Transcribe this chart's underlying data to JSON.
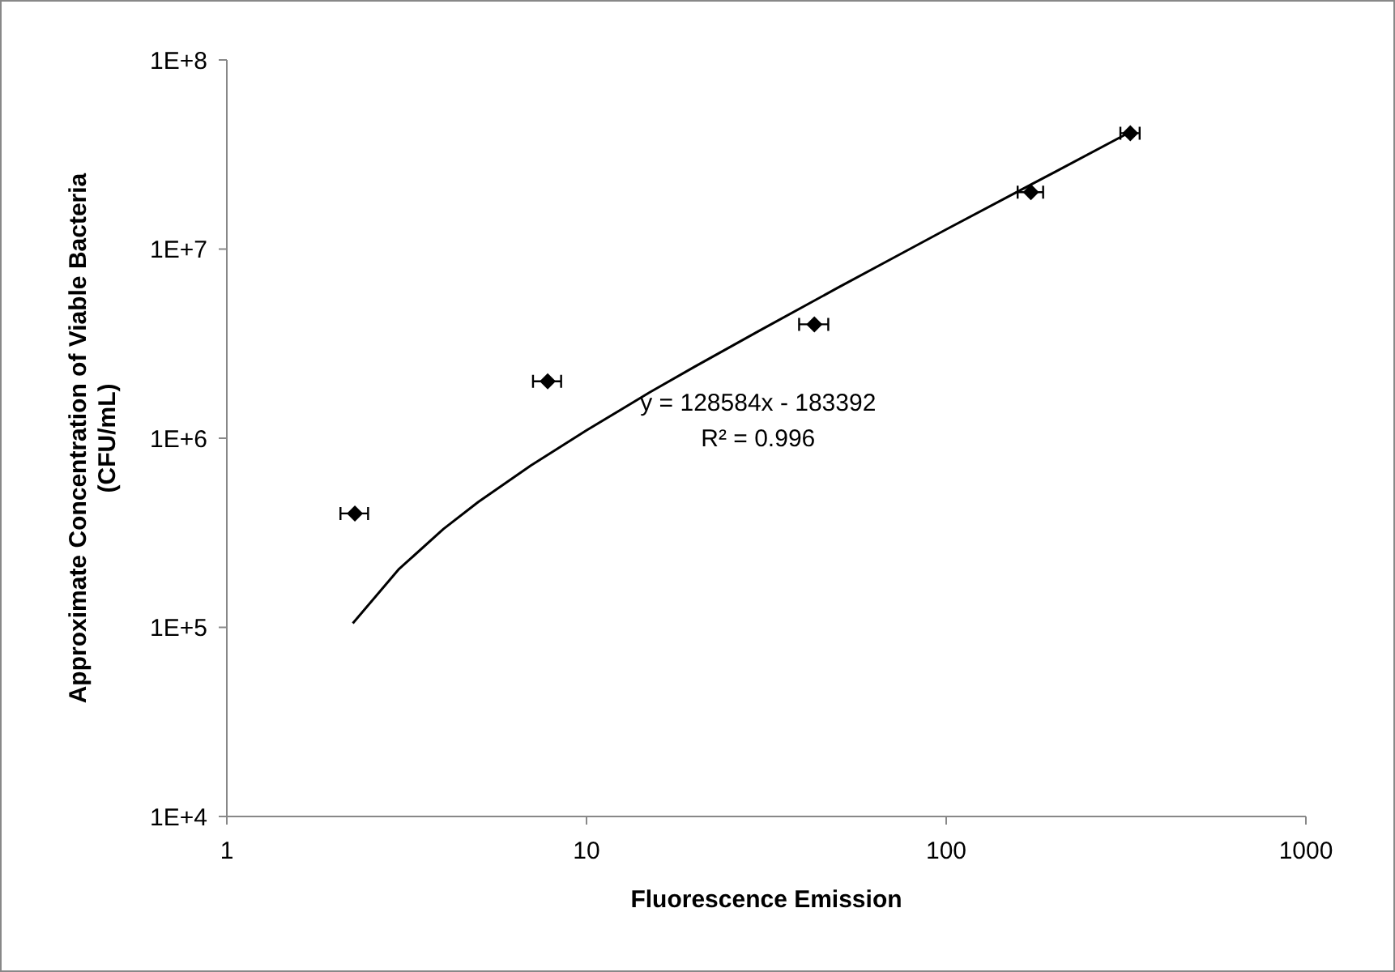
{
  "chart_data": {
    "type": "scatter",
    "xlabel": "Fluorescence Emission",
    "ylabel": "Approximate Concentration of Viable Bacteria\n(CFU/mL)",
    "log": "xy",
    "xlim": [
      1,
      1000
    ],
    "xticks": [
      1,
      10,
      100,
      1000
    ],
    "ylim": [
      10000,
      100000000
    ],
    "yticks": [
      {
        "value": 10000,
        "label": "1E+4"
      },
      {
        "value": 100000,
        "label": "1E+5"
      },
      {
        "value": 1000000,
        "label": "1E+6"
      },
      {
        "value": 10000000,
        "label": "1E+7"
      },
      {
        "value": 100000000,
        "label": "1E+8"
      }
    ],
    "grid": false,
    "marker": "diamond",
    "annotations": [
      "y = 128584x - 183392",
      "R² = 0.996"
    ],
    "series": [
      {
        "color": "#000000",
        "x": [
          2.27,
          7.8,
          43,
          172,
          325
        ],
        "values": [
          400000,
          2000000,
          4000000,
          20000000,
          41000000
        ],
        "xerrors": [
          0.2,
          0.7,
          4,
          14,
          20
        ]
      },
      {
        "type": "line",
        "color": "#000000",
        "marker": "none",
        "line_style": "solid",
        "x": [
          2.24,
          3,
          4,
          5,
          7,
          10,
          15,
          20,
          30,
          50,
          70,
          100,
          150,
          200,
          327
        ],
        "values": [
          105000,
          202000,
          331000,
          460000,
          717000,
          1100000,
          1750000,
          2390000,
          3670000,
          6250000,
          8820000,
          12700000,
          19100000,
          25500000,
          41900000
        ]
      }
    ]
  }
}
